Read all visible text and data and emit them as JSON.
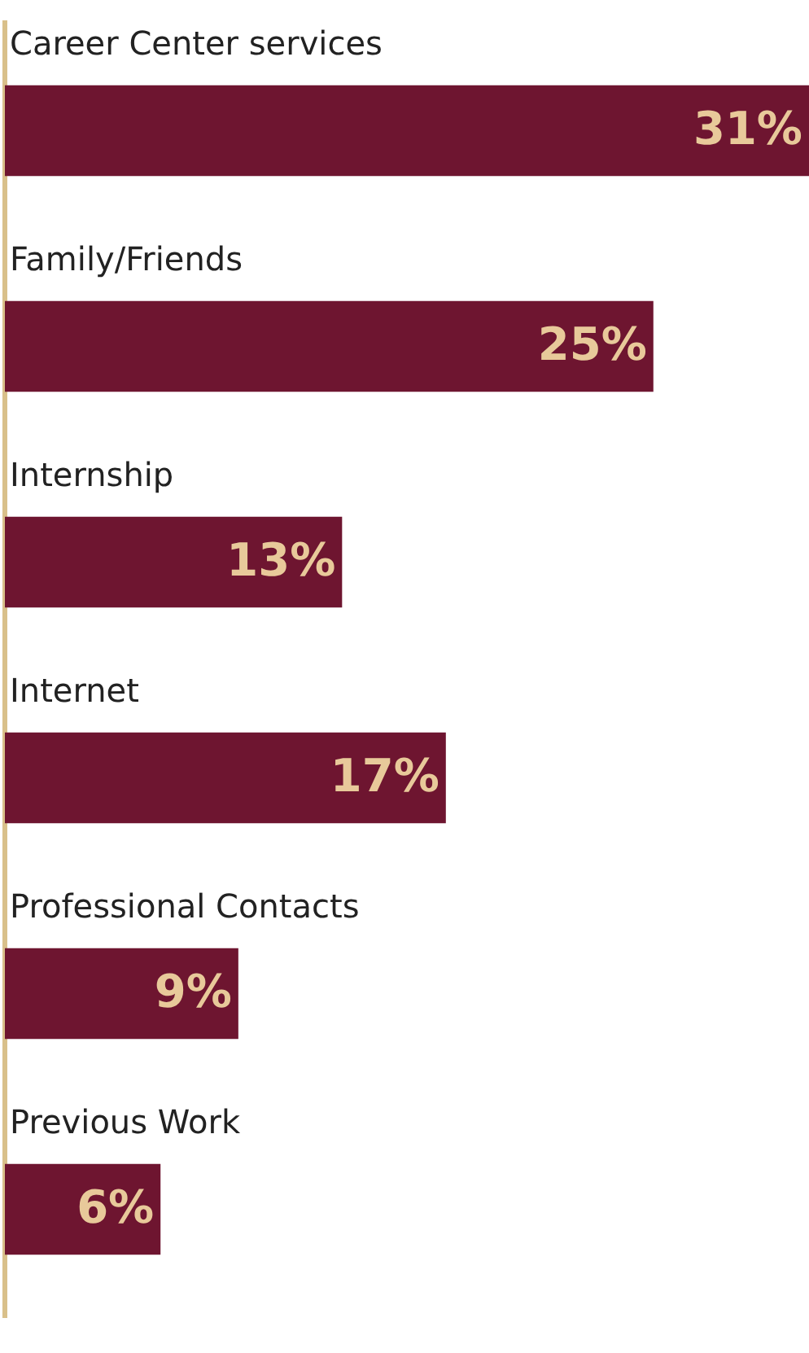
{
  "chart_data": {
    "type": "bar",
    "orientation": "horizontal",
    "categories": [
      "Career Center services",
      "Family/Friends",
      "Internship",
      "Internet",
      "Professional Contacts",
      "Previous Work"
    ],
    "values": [
      31,
      25,
      13,
      17,
      9,
      6
    ],
    "value_labels": [
      "31%",
      "25%",
      "13%",
      "17%",
      "9%",
      "6%"
    ],
    "color": "#6e1530",
    "xlim": [
      0,
      31
    ]
  }
}
